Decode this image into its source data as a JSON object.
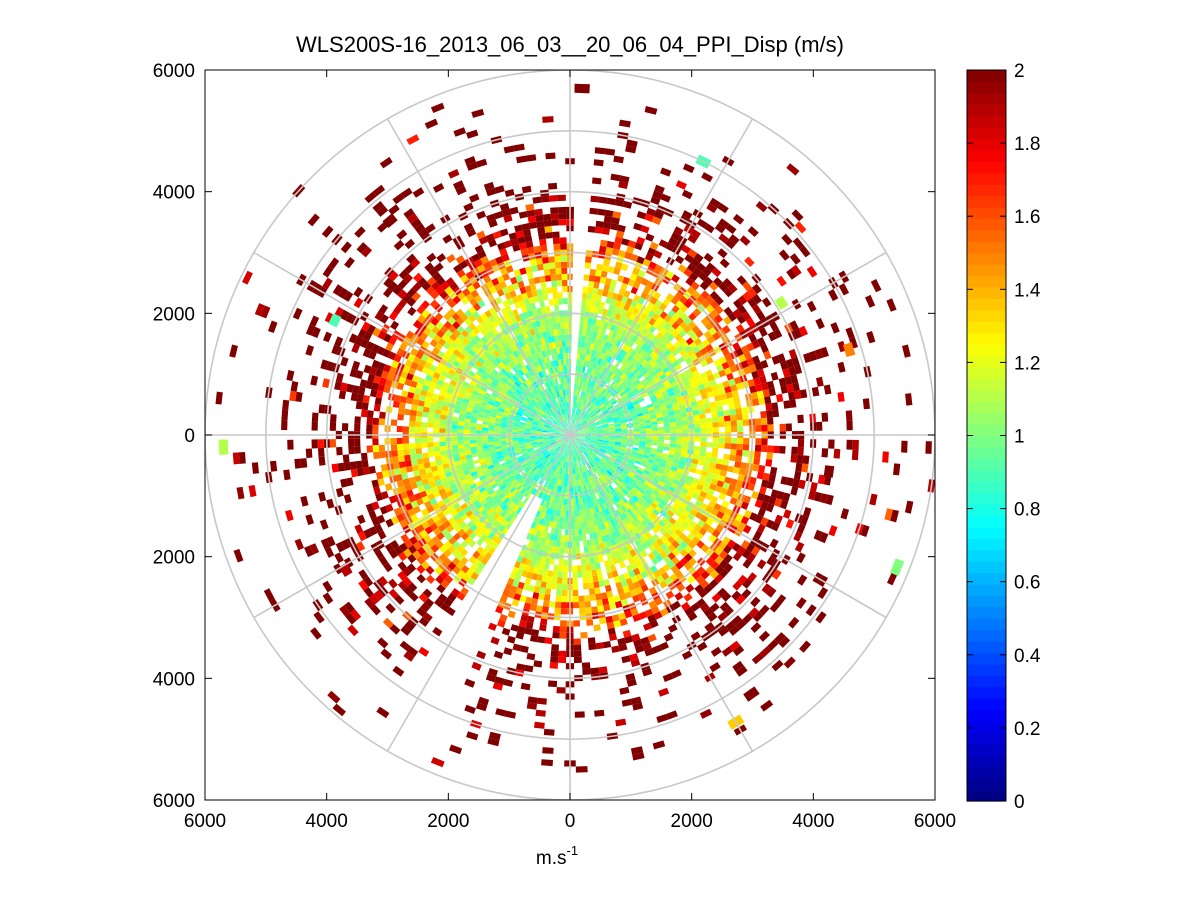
{
  "chart_data": {
    "type": "polar-ppi-scatter",
    "title": "WLS200S-16_2013_06_03__20_06_04_PPI_Disp (m/s)",
    "xlabel_base": "m.s",
    "xlabel_exponent": "-1",
    "ylabel": "",
    "xlim": [
      -6000,
      6000
    ],
    "ylim": [
      -6000,
      6000
    ],
    "x_ticks": [
      -6000,
      -4000,
      -2000,
      0,
      2000,
      4000,
      6000
    ],
    "x_tick_labels": [
      "6000",
      "4000",
      "2000",
      "0",
      "2000",
      "4000",
      "6000"
    ],
    "y_ticks": [
      6000,
      4000,
      2000,
      0,
      -2000,
      -4000,
      -6000
    ],
    "y_tick_labels": [
      "6000",
      "4000",
      "2000",
      "0",
      "2000",
      "4000",
      "6000"
    ],
    "range_rings_m": [
      1000,
      2000,
      3000,
      4000,
      5000,
      6000
    ],
    "spoke_angles_deg": [
      0,
      30,
      60,
      90,
      120,
      150,
      180,
      210,
      240,
      270,
      300,
      330
    ],
    "range_gate_m": 100,
    "azimuth_step_deg": 2,
    "colormap": "jet",
    "colorbar": {
      "clim": [
        0,
        2
      ],
      "ticks": [
        0,
        0.2,
        0.4,
        0.6,
        0.8,
        1,
        1.2,
        1.4,
        1.6,
        1.8,
        2
      ],
      "tick_labels": [
        "0",
        "0.2",
        "0.4",
        "0.6",
        "0.8",
        "1",
        "1.2",
        "1.4",
        "1.6",
        "1.8",
        "2"
      ]
    },
    "value_profile_by_range": [
      {
        "range_m": 200,
        "typical_value": 0.9
      },
      {
        "range_m": 1000,
        "typical_value": 0.95
      },
      {
        "range_m": 2000,
        "typical_value": 1.1
      },
      {
        "range_m": 3000,
        "typical_value": 1.5
      },
      {
        "range_m": 3500,
        "typical_value": 1.9
      },
      {
        "range_m": 4500,
        "typical_value": 2.0
      }
    ],
    "coverage_by_range": [
      {
        "range_m": 2000,
        "fraction": 0.97
      },
      {
        "range_m": 3000,
        "fraction": 0.75
      },
      {
        "range_m": 4000,
        "fraction": 0.3
      },
      {
        "range_m": 5000,
        "fraction": 0.08
      },
      {
        "range_m": 5800,
        "fraction": 0.02
      }
    ],
    "no_data_sectors_deg": [
      {
        "start": 1,
        "end": 4,
        "from_range_m": 0
      },
      {
        "start": 203,
        "end": 213,
        "from_range_m": 1200
      }
    ],
    "sample_gates": [
      {
        "azimuth_deg": 2,
        "range_m": 5700,
        "value": 2.0
      },
      {
        "azimuth_deg": 26,
        "range_m": 5000,
        "value": 0.9
      },
      {
        "azimuth_deg": 58,
        "range_m": 4100,
        "value": 1.1
      },
      {
        "azimuth_deg": 73,
        "range_m": 4800,
        "value": 1.5
      },
      {
        "azimuth_deg": 98,
        "range_m": 4300,
        "value": 2.0
      },
      {
        "azimuth_deg": 112,
        "range_m": 5800,
        "value": 1.0
      },
      {
        "azimuth_deg": 145,
        "range_m": 5200,
        "value": 2.0
      },
      {
        "azimuth_deg": 150,
        "range_m": 5450,
        "value": 1.35
      },
      {
        "azimuth_deg": 239,
        "range_m": 4300,
        "value": 1.9
      },
      {
        "azimuth_deg": 268,
        "range_m": 5700,
        "value": 1.1
      },
      {
        "azimuth_deg": 296,
        "range_m": 4300,
        "value": 0.9
      },
      {
        "azimuth_deg": 320,
        "range_m": 4600,
        "value": 2.0
      }
    ]
  }
}
